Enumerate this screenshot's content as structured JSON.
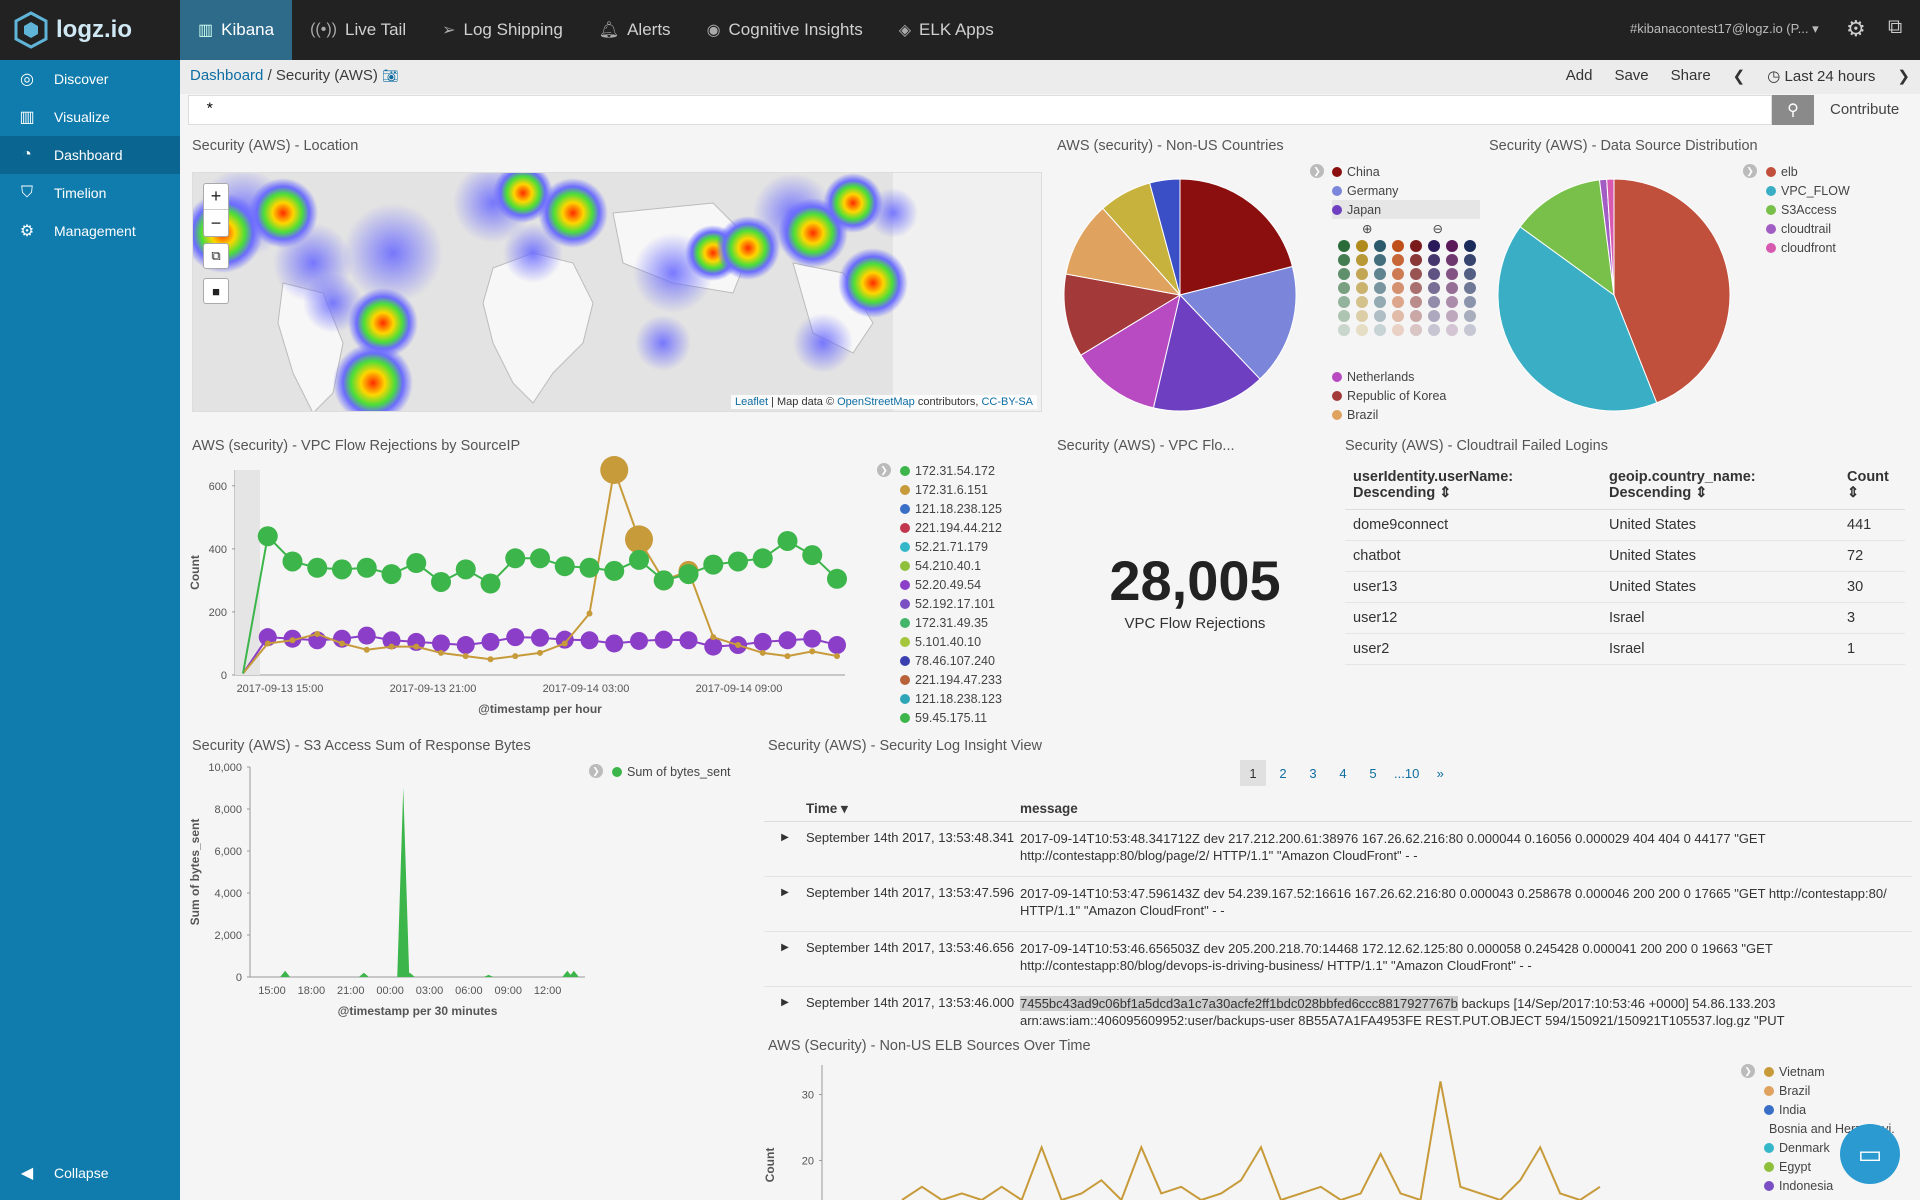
{
  "app": {
    "logo_text": "logz.io",
    "account": "#kibanacontest17@logz.io (P..."
  },
  "nav": [
    {
      "label": "Kibana",
      "icon": "bar-chart-icon"
    },
    {
      "label": "Live Tail",
      "icon": "live-tail-icon"
    },
    {
      "label": "Log Shipping",
      "icon": "paper-plane-icon"
    },
    {
      "label": "Alerts",
      "icon": "bell-icon"
    },
    {
      "label": "Cognitive Insights",
      "icon": "eye-icon"
    },
    {
      "label": "ELK Apps",
      "icon": "layers-icon"
    }
  ],
  "sidebar": {
    "items": [
      {
        "label": "Discover"
      },
      {
        "label": "Visualize"
      },
      {
        "label": "Dashboard"
      },
      {
        "label": "Timelion"
      },
      {
        "label": "Management"
      }
    ],
    "collapse": "Collapse"
  },
  "breadcrumb": {
    "root": "Dashboard",
    "sep": "/",
    "current": "Security (AWS)"
  },
  "actions": {
    "add": "Add",
    "save": "Save",
    "share": "Share",
    "time": "Last 24 hours"
  },
  "search": {
    "value": "*",
    "contribute": "Contribute"
  },
  "panels": {
    "location": {
      "title": "Security (AWS) - Location",
      "attribution": {
        "leaflet": "Leaflet",
        "mid": "| Map data ©",
        "osm": "OpenStreetMap",
        "contrib": "contributors,",
        "license": "CC-BY-SA"
      }
    },
    "nonus": {
      "title": "AWS (security) - Non-US Countries"
    },
    "datasource": {
      "title": "Security (AWS) - Data Source Distribution"
    },
    "vpcsrc": {
      "title": "AWS (security) - VPC Flow Rejections by SourceIP"
    },
    "vpcflo": {
      "title": "Security (AWS) - VPC Flo..."
    },
    "cloudtrail": {
      "title": "Security (AWS) - Cloudtrail Failed Logins"
    },
    "s3": {
      "title": "Security (AWS) - S3 Access Sum of Response Bytes"
    },
    "loginsight": {
      "title": "Security (AWS) - Security Log Insight View"
    },
    "elb": {
      "title": "AWS (Security) - Non-US ELB Sources Over Time"
    }
  },
  "metric": {
    "value": "28,005",
    "label": "VPC Flow Rejections"
  },
  "logins": {
    "headers": [
      "userIdentity.userName: Descending",
      "geoip.country_name: Descending",
      "Count"
    ],
    "rows": [
      {
        "user": "dome9connect",
        "country": "United States",
        "count": "441"
      },
      {
        "user": "chatbot",
        "country": "United States",
        "count": "72"
      },
      {
        "user": "user13",
        "country": "United States",
        "count": "30"
      },
      {
        "user": "user12",
        "country": "Israel",
        "count": "3"
      },
      {
        "user": "user2",
        "country": "Israel",
        "count": "1"
      }
    ]
  },
  "pager": [
    "1",
    "2",
    "3",
    "4",
    "5",
    "...10",
    "»"
  ],
  "logview": {
    "headers": {
      "time": "Time",
      "message": "message"
    },
    "rows": [
      {
        "time": "September 14th 2017, 13:53:48.341",
        "hl": "",
        "msg": "2017-09-14T10:53:48.341712Z dev 217.212.200.61:38976 167.26.62.216:80 0.000044 0.16056 0.000029 404 404 0 44177 \"GET http://contestapp:80/blog/page/2/ HTTP/1.1\" \"Amazon CloudFront\" - -"
      },
      {
        "time": "September 14th 2017, 13:53:47.596",
        "hl": "",
        "msg": "2017-09-14T10:53:47.596143Z dev 54.239.167.52:16616 167.26.62.216:80 0.000043 0.258678 0.000046 200 200 0 17665 \"GET http://contestapp:80/ HTTP/1.1\" \"Amazon CloudFront\" - -"
      },
      {
        "time": "September 14th 2017, 13:53:46.656",
        "hl": "",
        "msg": "2017-09-14T10:53:46.656503Z dev 205.200.218.70:14468 172.12.62.125:80 0.000058 0.245428 0.000041 200 200 0 19663 \"GET http://contestapp:80/blog/devops-is-driving-business/ HTTP/1.1\" \"Amazon CloudFront\" - -"
      },
      {
        "time": "September 14th 2017, 13:53:46.000",
        "hl": "7455bc43ad9c06bf1a5dcd3a1c7a30acfe2ff1bdc028bbfed6ccc8817927767b",
        "msg": " backups [14/Sep/2017:10:53:46 +0000] 54.86.133.203 arn:aws:iam::406095609952:user/backups-user 8B55A7A1FA4953FE REST.PUT.OBJECT 594/150921/150921T105537.log.gz \"PUT"
      }
    ]
  },
  "chart_data": [
    {
      "type": "pie",
      "title": "AWS (security) - Non-US Countries",
      "legend": [
        "China",
        "Germany",
        "Japan",
        "Netherlands",
        "Republic of Korea",
        "Brazil"
      ],
      "colors": [
        "#8b0f0f",
        "#7b86db",
        "#6e3fc0",
        "#b84bc1",
        "#a33939",
        "#dfa25f",
        "#c7b23d",
        "#3a4fc5"
      ],
      "values": [
        20,
        16,
        15,
        12,
        11,
        10,
        7,
        4
      ]
    },
    {
      "type": "pie",
      "title": "Security (AWS) - Data Source Distribution",
      "legend": [
        "elb",
        "VPC_FLOW",
        "S3Access",
        "cloudtrail",
        "cloudfront"
      ],
      "colors": [
        "#c0503c",
        "#3aaec5",
        "#79c04a",
        "#a25dc4",
        "#d85ab0"
      ],
      "values": [
        44,
        41,
        13,
        1,
        1
      ]
    },
    {
      "type": "line",
      "title": "AWS (security) - VPC Flow Rejections by SourceIP",
      "ylabel": "Count",
      "xlabel": "@timestamp per hour",
      "ylim": [
        0,
        650
      ],
      "xticks": [
        "2017-09-13 15:00",
        "2017-09-13 21:00",
        "2017-09-14 03:00",
        "2017-09-14 09:00"
      ],
      "yticks": [
        "0",
        "200",
        "400",
        "600"
      ],
      "legend": [
        {
          "name": "172.31.54.172",
          "color": "#3cb54a"
        },
        {
          "name": "172.31.6.151",
          "color": "#c79a3a"
        },
        {
          "name": "121.18.238.125",
          "color": "#3a6fc7"
        },
        {
          "name": "221.194.44.212",
          "color": "#c2364d"
        },
        {
          "name": "52.21.71.179",
          "color": "#34b8c9"
        },
        {
          "name": "54.210.40.1",
          "color": "#8fc03c"
        },
        {
          "name": "52.20.49.54",
          "color": "#8b3fc8"
        },
        {
          "name": "52.192.17.101",
          "color": "#7a4fc3"
        },
        {
          "name": "172.31.49.35",
          "color": "#43b56a"
        },
        {
          "name": "5.101.40.10",
          "color": "#a5c53c"
        },
        {
          "name": "78.46.107.240",
          "color": "#3a3fb0"
        },
        {
          "name": "221.194.47.233",
          "color": "#b9613a"
        },
        {
          "name": "121.18.238.123",
          "color": "#2fa6b8"
        },
        {
          "name": "59.45.175.11",
          "color": "#3cb54a"
        }
      ],
      "series": [
        {
          "name": "172.31.54.172",
          "values": [
            5,
            440,
            360,
            340,
            335,
            340,
            320,
            355,
            295,
            335,
            290,
            370,
            370,
            345,
            340,
            330,
            365,
            300,
            320,
            350,
            360,
            370,
            425,
            380,
            305
          ]
        },
        {
          "name": "172.31.6.151",
          "values": [
            5,
            100,
            110,
            130,
            100,
            80,
            90,
            90,
            70,
            60,
            50,
            60,
            70,
            100,
            195,
            650,
            430,
            300,
            330,
            120,
            95,
            70,
            60,
            75,
            60
          ]
        },
        {
          "name": "52.20.49.54",
          "values": [
            5,
            120,
            115,
            110,
            115,
            125,
            110,
            105,
            100,
            95,
            105,
            120,
            118,
            112,
            110,
            100,
            108,
            112,
            110,
            90,
            95,
            105,
            110,
            115,
            95
          ]
        }
      ]
    },
    {
      "type": "area",
      "title": "Security (AWS) - S3 Access Sum of Response Bytes",
      "ylabel": "Sum of bytes_sent",
      "xlabel": "@timestamp per 30 minutes",
      "ylim": [
        0,
        10000
      ],
      "xticks": [
        "15:00",
        "18:00",
        "21:00",
        "00:00",
        "03:00",
        "06:00",
        "09:00",
        "12:00"
      ],
      "yticks": [
        "0",
        "2,000",
        "4,000",
        "6,000",
        "8,000",
        "10,000"
      ],
      "series": [
        {
          "name": "Sum of bytes_sent",
          "color": "#3cb54a",
          "x": [
            13.5,
            14.0,
            16.0,
            22.0,
            25.0,
            25.5,
            31.5
          ],
          "values": [
            300,
            300,
            300,
            200,
            9000,
            200,
            100
          ]
        }
      ]
    },
    {
      "type": "line",
      "title": "AWS (Security) - Non-US ELB Sources Over Time",
      "ylabel": "Count",
      "yticks": [
        "20",
        "30"
      ],
      "legend": [
        {
          "name": "Vietnam",
          "color": "#c79a3a"
        },
        {
          "name": "Brazil",
          "color": "#dfa25f"
        },
        {
          "name": "India",
          "color": "#3a6fc7"
        },
        {
          "name": "Bosnia and Herzegovi...",
          "color": "#c2364d"
        },
        {
          "name": "Denmark",
          "color": "#34b8c9"
        },
        {
          "name": "Egypt",
          "color": "#8fc03c"
        },
        {
          "name": "Indonesia",
          "color": "#7a4fc3"
        }
      ],
      "series": [
        {
          "name": "Vietnam",
          "values": [
            14,
            16,
            14,
            15,
            14,
            16,
            14,
            22,
            14,
            15,
            17,
            14,
            22,
            15,
            16,
            14,
            15,
            17,
            22,
            14,
            15,
            16,
            14,
            15,
            21,
            15,
            14,
            32,
            16,
            15,
            14,
            17,
            22,
            15,
            14,
            16
          ]
        }
      ]
    }
  ]
}
